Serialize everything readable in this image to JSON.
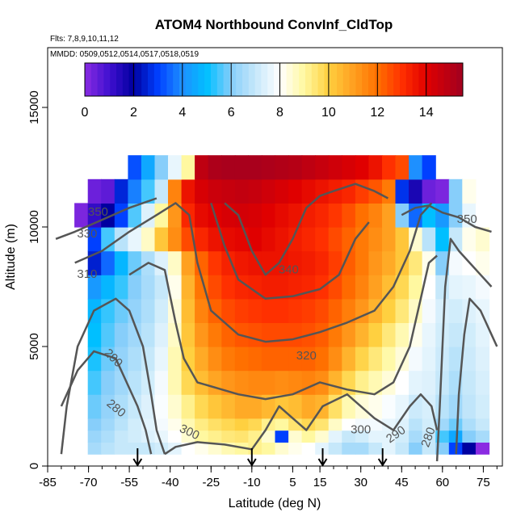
{
  "chart_data": {
    "type": "heatmap",
    "title": "ATOM4 Northbound ConvInf_CldTop",
    "subtitle_flights": "Flts: 7,8,9,10,11,12",
    "subtitle_dates": "MMDD: 0509,0512,0514,0517,0518,0519",
    "xlabel": "Latitude (deg N)",
    "ylabel": "Altitude (m)",
    "xlim": [
      -85,
      82
    ],
    "ylim": [
      0,
      17500
    ],
    "xticks": [
      -85,
      -70,
      -55,
      -40,
      -25,
      -10,
      5,
      15,
      30,
      45,
      60,
      75
    ],
    "xtick_labels": [
      "-85",
      "-70",
      "-55",
      "-40",
      "-25",
      "-10",
      "5",
      "15",
      "30",
      "45",
      "60",
      "75"
    ],
    "yticks": [
      0,
      5000,
      10000,
      15000
    ],
    "ytick_labels": [
      "0",
      "5000",
      "10000",
      "15000"
    ],
    "colorbar": {
      "range": [
        0,
        15.5
      ],
      "ticks": [
        0,
        2,
        4,
        6,
        8,
        10,
        12,
        14
      ],
      "tick_labels": [
        "0",
        "2",
        "4",
        "6",
        "8",
        "10",
        "12",
        "14"
      ],
      "stops": [
        {
          "v": 0,
          "c": "#8a2be2"
        },
        {
          "v": 1,
          "c": "#4010d0"
        },
        {
          "v": 2,
          "c": "#0000a0"
        },
        {
          "v": 3,
          "c": "#0040ff"
        },
        {
          "v": 4,
          "c": "#1e90ff"
        },
        {
          "v": 5,
          "c": "#00bfff"
        },
        {
          "v": 6,
          "c": "#87cefa"
        },
        {
          "v": 7,
          "c": "#c6e8fa"
        },
        {
          "v": 8,
          "c": "#ffffff"
        },
        {
          "v": 9,
          "c": "#fff8a0"
        },
        {
          "v": 10,
          "c": "#ffd040"
        },
        {
          "v": 11,
          "c": "#ffa020"
        },
        {
          "v": 12,
          "c": "#ff7000"
        },
        {
          "v": 13,
          "c": "#ff3000"
        },
        {
          "v": 14,
          "c": "#e00000"
        },
        {
          "v": 15.5,
          "c": "#a00020"
        }
      ]
    },
    "grid": false,
    "legend": "colorbar top inside plot",
    "flight_arrow_latitudes": [
      -52,
      -10,
      16,
      38
    ],
    "field_rows": [
      {
        "alt": 0,
        "values": [
          null,
          null,
          null,
          null,
          null,
          null,
          null,
          null,
          null,
          null,
          null,
          null,
          null,
          null,
          null,
          null,
          null,
          null,
          null,
          null,
          null,
          null,
          null,
          null,
          null,
          null,
          null,
          null,
          null,
          null,
          null,
          null,
          null,
          null
        ]
      },
      {
        "alt": 500,
        "values": [
          null,
          null,
          null,
          6.5,
          6.8,
          7.0,
          7.0,
          7.0,
          7.2,
          7.5,
          8.0,
          8.2,
          8.5,
          8.8,
          9.0,
          9.2,
          9.0,
          8.5,
          8.2,
          8.0,
          7.5,
          7.0,
          6.5,
          6.5,
          7.0,
          7.5,
          7.0,
          6.0,
          7.0,
          6.0,
          3.0,
          2.0,
          0.0,
          null
        ]
      },
      {
        "alt": 1000,
        "values": [
          null,
          null,
          null,
          6.3,
          6.6,
          7.0,
          7.2,
          7.4,
          7.6,
          8.0,
          8.5,
          9.0,
          9.2,
          9.4,
          9.5,
          9.2,
          8.5,
          3.0,
          8.5,
          9.0,
          8.5,
          7.5,
          7.0,
          7.2,
          7.5,
          7.5,
          7.2,
          6.5,
          7.0,
          5.5,
          4.5,
          6.0,
          6.5,
          null
        ]
      },
      {
        "alt": 1500,
        "values": [
          null,
          null,
          null,
          6.0,
          6.4,
          6.8,
          7.2,
          7.5,
          7.8,
          8.2,
          8.8,
          9.3,
          9.6,
          9.8,
          10.0,
          9.8,
          9.2,
          9.0,
          9.5,
          9.8,
          9.5,
          8.6,
          8.0,
          7.8,
          7.8,
          7.6,
          7.4,
          6.8,
          7.2,
          6.4,
          5.8,
          6.6,
          7.0,
          null
        ]
      },
      {
        "alt": 2000,
        "values": [
          null,
          null,
          null,
          5.8,
          6.2,
          6.6,
          7.0,
          7.4,
          7.9,
          8.5,
          9.2,
          9.8,
          10.2,
          10.5,
          10.8,
          10.8,
          10.5,
          10.2,
          10.4,
          10.8,
          10.6,
          9.6,
          8.8,
          8.4,
          8.2,
          7.9,
          7.6,
          7.1,
          7.3,
          6.8,
          6.4,
          6.9,
          7.2,
          null
        ]
      },
      {
        "alt": 3000,
        "values": [
          null,
          null,
          null,
          5.5,
          6.0,
          6.4,
          6.8,
          7.2,
          7.8,
          8.8,
          9.8,
          10.4,
          10.9,
          11.2,
          11.4,
          11.5,
          11.5,
          11.4,
          11.5,
          11.6,
          11.4,
          10.6,
          9.8,
          9.2,
          8.8,
          8.4,
          8.0,
          7.5,
          7.4,
          7.0,
          6.6,
          7.0,
          7.3,
          null
        ]
      },
      {
        "alt": 4000,
        "values": [
          null,
          null,
          null,
          5.2,
          5.8,
          6.2,
          6.6,
          7.0,
          7.6,
          8.8,
          10.0,
          10.8,
          11.4,
          11.8,
          12.0,
          12.1,
          12.2,
          12.2,
          12.2,
          12.2,
          12.0,
          11.4,
          10.6,
          9.9,
          9.4,
          8.9,
          8.4,
          7.8,
          7.5,
          7.1,
          6.8,
          7.1,
          7.4,
          null
        ]
      },
      {
        "alt": 5000,
        "values": [
          null,
          null,
          null,
          5.0,
          5.6,
          6.0,
          6.4,
          6.8,
          7.4,
          8.6,
          10.2,
          11.2,
          11.8,
          12.2,
          12.4,
          12.5,
          12.6,
          12.6,
          12.6,
          12.5,
          12.3,
          11.8,
          11.2,
          10.6,
          10.0,
          9.4,
          8.8,
          8.2,
          7.6,
          7.2,
          7.0,
          7.2,
          7.5,
          null
        ]
      },
      {
        "alt": 6000,
        "values": [
          null,
          null,
          null,
          4.8,
          5.4,
          5.8,
          6.2,
          6.6,
          7.2,
          8.4,
          10.4,
          11.6,
          12.2,
          12.6,
          12.8,
          12.9,
          13.0,
          13.0,
          12.9,
          12.8,
          12.6,
          12.2,
          11.7,
          11.2,
          10.6,
          10.0,
          9.4,
          8.6,
          7.8,
          7.3,
          7.2,
          7.4,
          7.6,
          null
        ]
      },
      {
        "alt": 7000,
        "values": [
          null,
          null,
          null,
          4.2,
          4.8,
          5.4,
          6.0,
          6.5,
          7.0,
          8.2,
          10.6,
          11.9,
          12.6,
          13.0,
          13.2,
          13.3,
          13.4,
          13.4,
          13.3,
          13.2,
          13.0,
          12.6,
          12.1,
          11.6,
          11.0,
          10.4,
          9.8,
          9.0,
          8.0,
          7.0,
          7.5,
          7.6,
          7.8,
          null
        ]
      },
      {
        "alt": 8000,
        "values": [
          null,
          null,
          null,
          2.5,
          3.5,
          4.8,
          5.8,
          6.6,
          7.4,
          8.6,
          11.0,
          12.2,
          12.9,
          13.3,
          13.5,
          13.6,
          13.6,
          13.6,
          13.5,
          13.4,
          13.2,
          12.8,
          12.3,
          11.8,
          11.2,
          10.8,
          10.2,
          9.4,
          8.2,
          6.0,
          7.8,
          8.0,
          8.2,
          null
        ]
      },
      {
        "alt": 9000,
        "values": [
          null,
          null,
          null,
          3.0,
          5.5,
          6.8,
          7.6,
          8.6,
          10.2,
          11.4,
          12.6,
          13.2,
          13.6,
          13.8,
          13.9,
          14.0,
          13.8,
          13.6,
          13.4,
          13.2,
          13.0,
          12.6,
          12.2,
          11.8,
          11.4,
          11.0,
          10.2,
          8.5,
          6.8,
          5.0,
          7.0,
          8.2,
          8.5,
          null
        ]
      },
      {
        "alt": 10000,
        "values": [
          null,
          null,
          0.2,
          1.2,
          2.0,
          3.0,
          5.6,
          7.4,
          9.0,
          11.2,
          13.2,
          13.8,
          14.0,
          14.2,
          14.3,
          14.2,
          14.0,
          13.8,
          13.6,
          13.4,
          13.2,
          12.9,
          12.5,
          12.0,
          11.6,
          11.0,
          6.0,
          3.5,
          5.0,
          4.2,
          6.0,
          7.6,
          8.0,
          null
        ]
      },
      {
        "alt": 11000,
        "values": [
          null,
          null,
          null,
          0.4,
          0.6,
          2.6,
          3.8,
          5.5,
          7.0,
          11.6,
          13.6,
          14.2,
          14.5,
          14.6,
          14.7,
          14.6,
          14.4,
          14.2,
          14.0,
          13.8,
          13.6,
          13.4,
          13.2,
          12.8,
          12.4,
          11.8,
          2.8,
          1.6,
          0.4,
          0.2,
          6.0,
          8.2,
          null,
          null
        ]
      },
      {
        "alt": 12000,
        "values": [
          null,
          null,
          null,
          null,
          null,
          null,
          3.2,
          4.5,
          6.0,
          7.6,
          9.0,
          14.8,
          15.2,
          15.3,
          15.3,
          15.3,
          15.2,
          15.1,
          15.0,
          14.8,
          14.6,
          14.4,
          14.2,
          14.0,
          13.6,
          13.0,
          12.6,
          4.0,
          3.0,
          null,
          null,
          null,
          null,
          null
        ]
      }
    ],
    "contour_labels": [
      "350",
      "330",
      "310",
      "290",
      "280",
      "300",
      "340",
      "320",
      "300",
      "290",
      "280",
      "350"
    ]
  }
}
